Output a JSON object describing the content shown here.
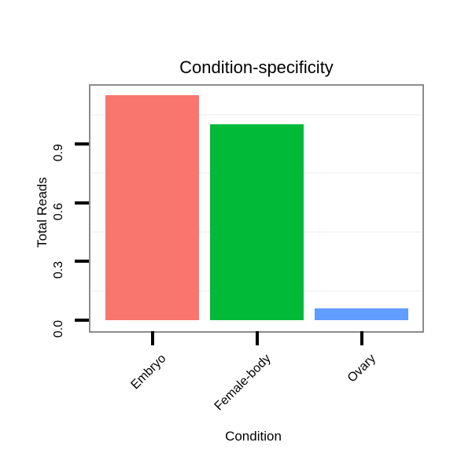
{
  "chart_data": {
    "type": "bar",
    "title": "Condition-specificity",
    "xlabel": "Condition",
    "ylabel": "Total Reads",
    "categories": [
      "Embryo",
      "Female-body",
      "Ovary"
    ],
    "values": [
      1.15,
      1.0,
      0.06
    ],
    "bar_colors": [
      "#F8766D",
      "#00BA38",
      "#619CFF"
    ],
    "y_ticks": [
      0.0,
      0.3,
      0.6,
      0.9
    ],
    "y_tick_labels": [
      "0.0",
      "0.3",
      "0.6",
      "0.9"
    ],
    "ylim": [
      0,
      1.2
    ],
    "minor_gridlines": [
      0.15,
      0.45,
      0.75,
      1.05
    ],
    "grid": "minor-horizontal-only",
    "legend": "none",
    "panel_border_color": "#8c8c8c",
    "gridline_color": "#f5f5f5",
    "tick_color": "#000000",
    "text_color": "#000000",
    "background_color": "#ffffff"
  }
}
